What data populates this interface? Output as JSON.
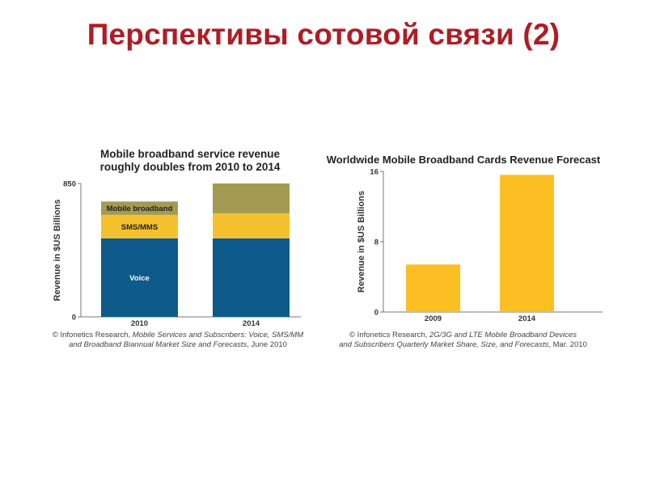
{
  "slide": {
    "title": "Перспективы сотовой связи (2)"
  },
  "chart_data": [
    {
      "type": "bar",
      "stacked": true,
      "title": "Mobile broadband service revenue roughly doubles from 2010 to 2014",
      "ylabel": "Revenue in $US Billions",
      "xlabel": "",
      "ylim": [
        0,
        850
      ],
      "yticks": [
        "0",
        "850"
      ],
      "categories": [
        "2010",
        "2014"
      ],
      "series": [
        {
          "name": "Voice",
          "color": "#0e5a8a",
          "values": [
            500,
            500
          ]
        },
        {
          "name": "SMS/MMS",
          "color": "#f6c12e",
          "values": [
            150,
            160
          ]
        },
        {
          "name": "Mobile broadband",
          "color": "#a39b52",
          "values": [
            85,
            190
          ]
        }
      ],
      "source_prefix": "© Infonetics Research, ",
      "source_italic_1": "Mobile Services and Subscribers: Voice, SMS/MM",
      "source_italic_2": "and Broadband Biannual Market Size and Forecasts",
      "source_suffix": ", June 2010"
    },
    {
      "type": "bar",
      "title": "Worldwide Mobile Broadband Cards Revenue Forecast",
      "ylabel": "Revenue in $US Billions",
      "xlabel": "",
      "ylim": [
        0,
        16
      ],
      "yticks": [
        "0",
        "8",
        "16"
      ],
      "categories": [
        "2009",
        "2014"
      ],
      "series": [
        {
          "color": "#fbbf24",
          "values": [
            5.4,
            15.6
          ]
        }
      ],
      "source_prefix": "© Infonetics Research, ",
      "source_italic_1": "2G/3G and LTE Mobile Broadband Devices",
      "source_italic_2": "and Subscribers Quarterly Market Share, Size, and Forecasts",
      "source_suffix": ", Mar. 2010"
    }
  ]
}
